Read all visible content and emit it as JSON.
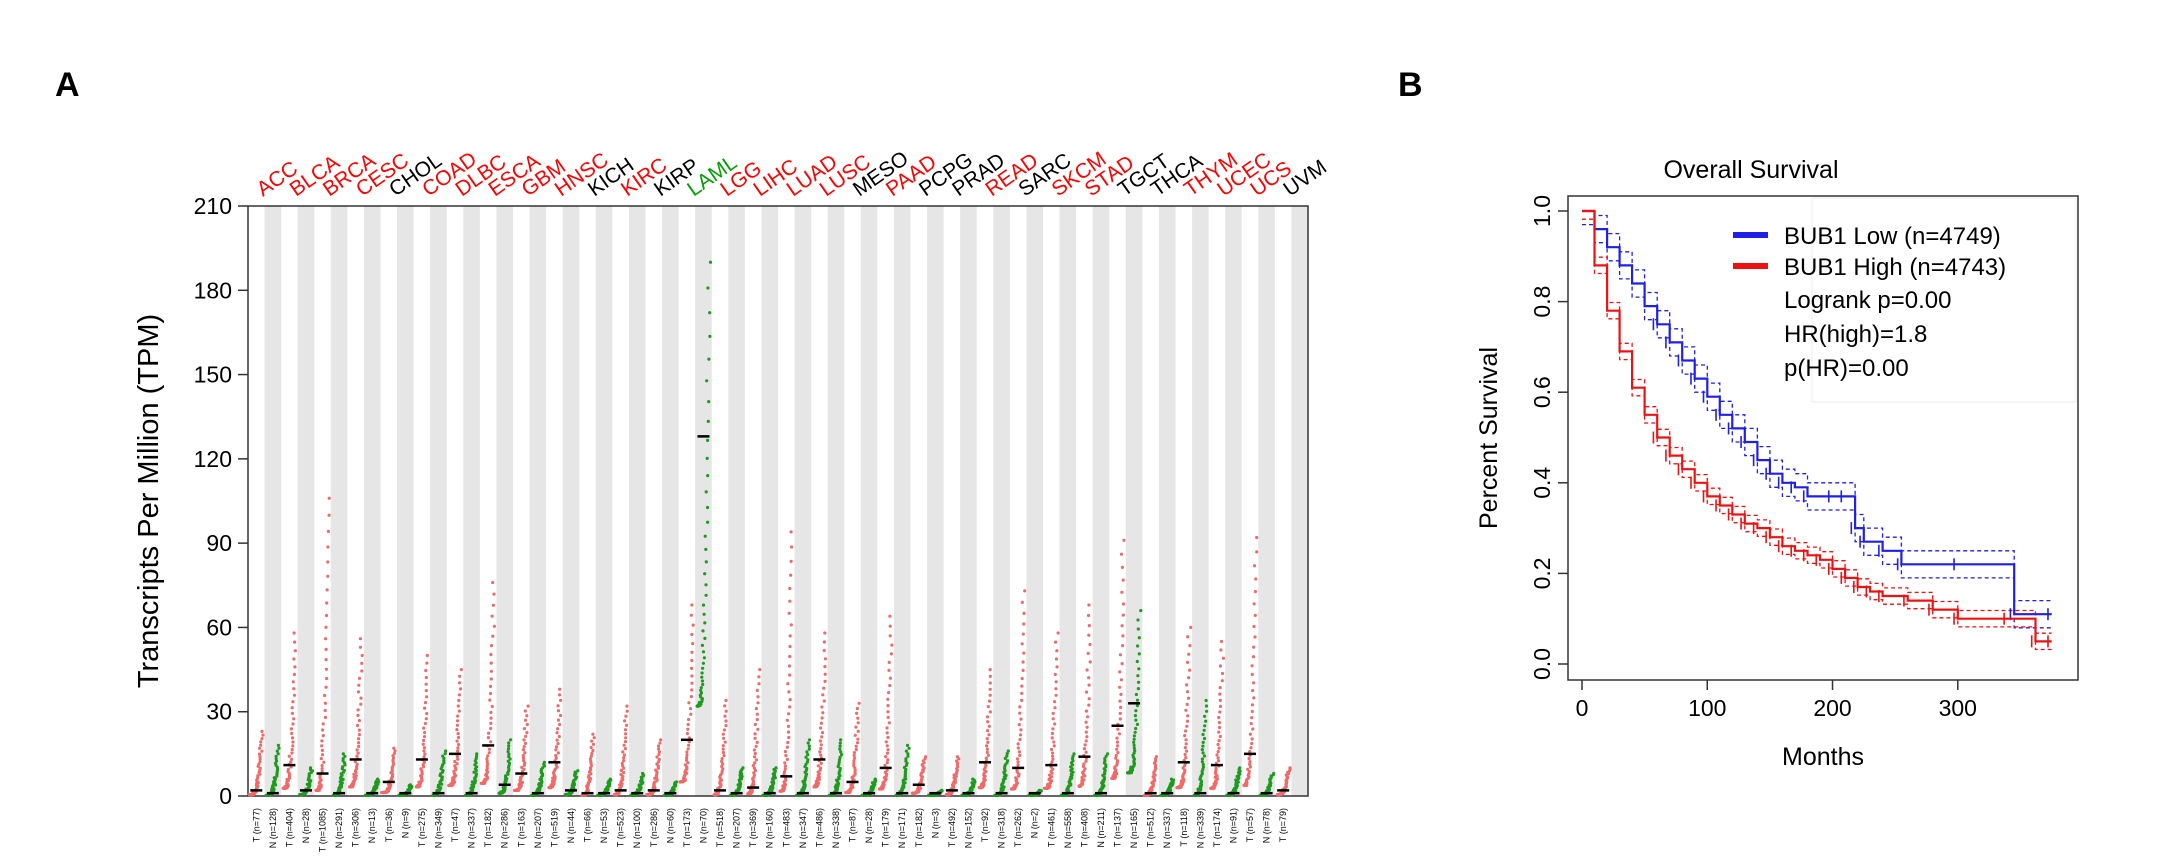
{
  "panels": {
    "a": "A",
    "b": "B"
  },
  "colors": {
    "tumor": "#f06a6a",
    "normal": "#1f9a1f",
    "up": "#ff0000",
    "down": "#00a000",
    "neutral": "#000000",
    "low": "#1f1fe8",
    "high": "#ee1111",
    "band": "#e6e6e6"
  },
  "chart_data": [
    {
      "type": "scatter",
      "subtype": "dot-plot",
      "title": "",
      "ylabel": "Transcripts Per Million (TPM)",
      "ylim": [
        0,
        210
      ],
      "yticks": [
        0,
        30,
        60,
        90,
        120,
        150,
        180,
        210
      ],
      "cancers": [
        {
          "name": "ACC",
          "status": "up",
          "tumor": {
            "label": "T (n=77)",
            "median": 2,
            "max": 23
          },
          "normal": {
            "label": "N (n=128)",
            "median": 1,
            "max": 18
          }
        },
        {
          "name": "BLCA",
          "status": "up",
          "tumor": {
            "label": "T (n=404)",
            "median": 11,
            "max": 58
          },
          "normal": {
            "label": "N (n=28)",
            "median": 2,
            "max": 10
          }
        },
        {
          "name": "BRCA",
          "status": "up",
          "tumor": {
            "label": "T (n=1085)",
            "median": 8,
            "max": 106
          },
          "normal": {
            "label": "N (n=291)",
            "median": 1,
            "max": 15
          }
        },
        {
          "name": "CESC",
          "status": "up",
          "tumor": {
            "label": "T (n=306)",
            "median": 13,
            "max": 56
          },
          "normal": {
            "label": "N (n=13)",
            "median": 1,
            "max": 6
          }
        },
        {
          "name": "CHOL",
          "status": "neutral",
          "tumor": {
            "label": "T (n=36)",
            "median": 5,
            "max": 17
          },
          "normal": {
            "label": "N (n=9)",
            "median": 1,
            "max": 4
          }
        },
        {
          "name": "COAD",
          "status": "up",
          "tumor": {
            "label": "T (n=275)",
            "median": 13,
            "max": 50
          },
          "normal": {
            "label": "N (n=349)",
            "median": 1,
            "max": 16
          }
        },
        {
          "name": "DLBC",
          "status": "up",
          "tumor": {
            "label": "T (n=47)",
            "median": 15,
            "max": 45
          },
          "normal": {
            "label": "N (n=337)",
            "median": 1,
            "max": 15
          }
        },
        {
          "name": "ESCA",
          "status": "up",
          "tumor": {
            "label": "T (n=182)",
            "median": 18,
            "max": 76
          },
          "normal": {
            "label": "N (n=286)",
            "median": 4,
            "max": 20
          }
        },
        {
          "name": "GBM",
          "status": "up",
          "tumor": {
            "label": "T (n=163)",
            "median": 8,
            "max": 32
          },
          "normal": {
            "label": "N (n=207)",
            "median": 1,
            "max": 12
          }
        },
        {
          "name": "HNSC",
          "status": "up",
          "tumor": {
            "label": "T (n=519)",
            "median": 12,
            "max": 38
          },
          "normal": {
            "label": "N (n=44)",
            "median": 2,
            "max": 9
          }
        },
        {
          "name": "KICH",
          "status": "neutral",
          "tumor": {
            "label": "T (n=66)",
            "median": 1,
            "max": 22
          },
          "normal": {
            "label": "N (n=53)",
            "median": 1,
            "max": 6
          }
        },
        {
          "name": "KIRC",
          "status": "up",
          "tumor": {
            "label": "T (n=523)",
            "median": 2,
            "max": 32
          },
          "normal": {
            "label": "N (n=100)",
            "median": 1,
            "max": 8
          }
        },
        {
          "name": "KIRP",
          "status": "neutral",
          "tumor": {
            "label": "T (n=286)",
            "median": 2,
            "max": 20
          },
          "normal": {
            "label": "N (n=60)",
            "median": 1,
            "max": 5
          }
        },
        {
          "name": "LAML",
          "status": "down",
          "tumor": {
            "label": "T (n=173)",
            "median": 20,
            "max": 68
          },
          "normal": {
            "label": "N (n=70)",
            "median": 128,
            "max": 190
          }
        },
        {
          "name": "LGG",
          "status": "up",
          "tumor": {
            "label": "T (n=518)",
            "median": 2,
            "max": 34
          },
          "normal": {
            "label": "N (n=207)",
            "median": 1,
            "max": 10
          }
        },
        {
          "name": "LIHC",
          "status": "up",
          "tumor": {
            "label": "T (n=369)",
            "median": 3,
            "max": 45
          },
          "normal": {
            "label": "N (n=160)",
            "median": 1,
            "max": 10
          }
        },
        {
          "name": "LUAD",
          "status": "up",
          "tumor": {
            "label": "T (n=483)",
            "median": 7,
            "max": 94
          },
          "normal": {
            "label": "N (n=347)",
            "median": 1,
            "max": 20
          }
        },
        {
          "name": "LUSC",
          "status": "up",
          "tumor": {
            "label": "T (n=486)",
            "median": 13,
            "max": 58
          },
          "normal": {
            "label": "N (n=338)",
            "median": 1,
            "max": 20
          }
        },
        {
          "name": "MESO",
          "status": "neutral",
          "tumor": {
            "label": "T (n=87)",
            "median": 5,
            "max": 33
          },
          "normal": {
            "label": "N (n=28)",
            "median": 1,
            "max": 6
          }
        },
        {
          "name": "PAAD",
          "status": "up",
          "tumor": {
            "label": "T (n=179)",
            "median": 10,
            "max": 64
          },
          "normal": {
            "label": "N (n=171)",
            "median": 1,
            "max": 18
          }
        },
        {
          "name": "PCPG",
          "status": "neutral",
          "tumor": {
            "label": "T (n=182)",
            "median": 4,
            "max": 14
          },
          "normal": {
            "label": "N (n=3)",
            "median": 1,
            "max": 2
          }
        },
        {
          "name": "PRAD",
          "status": "neutral",
          "tumor": {
            "label": "T (n=492)",
            "median": 2,
            "max": 14
          },
          "normal": {
            "label": "N (n=152)",
            "median": 1,
            "max": 6
          }
        },
        {
          "name": "READ",
          "status": "up",
          "tumor": {
            "label": "T (n=92)",
            "median": 12,
            "max": 45
          },
          "normal": {
            "label": "N (n=318)",
            "median": 1,
            "max": 16
          }
        },
        {
          "name": "SARC",
          "status": "neutral",
          "tumor": {
            "label": "T (n=262)",
            "median": 10,
            "max": 73
          },
          "normal": {
            "label": "N (n=2)",
            "median": 1,
            "max": 2
          }
        },
        {
          "name": "SKCM",
          "status": "up",
          "tumor": {
            "label": "T (n=461)",
            "median": 11,
            "max": 58
          },
          "normal": {
            "label": "N (n=558)",
            "median": 1,
            "max": 15
          }
        },
        {
          "name": "STAD",
          "status": "up",
          "tumor": {
            "label": "T (n=408)",
            "median": 14,
            "max": 68
          },
          "normal": {
            "label": "N (n=211)",
            "median": 1,
            "max": 15
          }
        },
        {
          "name": "TGCT",
          "status": "neutral",
          "tumor": {
            "label": "T (n=137)",
            "median": 25,
            "max": 91
          },
          "normal": {
            "label": "N (n=165)",
            "median": 33,
            "max": 66
          }
        },
        {
          "name": "THCA",
          "status": "neutral",
          "tumor": {
            "label": "T (n=512)",
            "median": 1,
            "max": 14
          },
          "normal": {
            "label": "N (n=337)",
            "median": 1,
            "max": 6
          }
        },
        {
          "name": "THYM",
          "status": "up",
          "tumor": {
            "label": "T (n=118)",
            "median": 12,
            "max": 60
          },
          "normal": {
            "label": "N (n=339)",
            "median": 1,
            "max": 34
          }
        },
        {
          "name": "UCEC",
          "status": "up",
          "tumor": {
            "label": "T (n=174)",
            "median": 11,
            "max": 55
          },
          "normal": {
            "label": "N (n=91)",
            "median": 1,
            "max": 10
          }
        },
        {
          "name": "UCS",
          "status": "up",
          "tumor": {
            "label": "T (n=57)",
            "median": 15,
            "max": 92
          },
          "normal": {
            "label": "N (n=78)",
            "median": 1,
            "max": 8
          }
        },
        {
          "name": "UVM",
          "status": "neutral",
          "tumor": {
            "label": "T (n=79)",
            "median": 2,
            "max": 10
          },
          "normal": {
            "label": "",
            "median": null,
            "max": null
          }
        }
      ]
    },
    {
      "type": "line",
      "subtype": "kaplan-meier",
      "title": "Overall Survival",
      "xlabel": "Months",
      "ylabel": "Percent Survival",
      "xlim": [
        0,
        380
      ],
      "ylim": [
        0,
        1.0
      ],
      "xticks": [
        0,
        100,
        200,
        300
      ],
      "yticks": [
        0.0,
        0.2,
        0.4,
        0.6,
        0.8,
        1.0
      ],
      "legend": {
        "position": "top-right",
        "entries": [
          "BUB1 Low (n=4749)",
          "BUB1 High (n=4743)"
        ],
        "stats": [
          "Logrank p=0.00",
          "HR(high)=1.8",
          "p(HR)=0.00"
        ]
      },
      "series": [
        {
          "name": "BUB1 Low (n=4749)",
          "color": "low",
          "x": [
            0,
            10,
            20,
            30,
            40,
            50,
            60,
            70,
            80,
            90,
            100,
            110,
            120,
            130,
            140,
            150,
            160,
            170,
            180,
            200,
            210,
            218,
            225,
            240,
            255,
            300,
            345,
            375
          ],
          "y": [
            1.0,
            0.96,
            0.92,
            0.88,
            0.84,
            0.79,
            0.75,
            0.71,
            0.67,
            0.63,
            0.59,
            0.55,
            0.52,
            0.49,
            0.45,
            0.42,
            0.4,
            0.39,
            0.37,
            0.37,
            0.37,
            0.3,
            0.27,
            0.25,
            0.22,
            0.22,
            0.11,
            0.11
          ]
        },
        {
          "name": "BUB1 High (n=4743)",
          "color": "high",
          "x": [
            0,
            10,
            20,
            30,
            40,
            50,
            60,
            70,
            80,
            90,
            100,
            110,
            120,
            130,
            140,
            150,
            160,
            170,
            180,
            190,
            200,
            210,
            220,
            230,
            240,
            260,
            280,
            300,
            340,
            362,
            375
          ],
          "y": [
            1.0,
            0.88,
            0.78,
            0.69,
            0.61,
            0.55,
            0.5,
            0.46,
            0.43,
            0.4,
            0.37,
            0.35,
            0.33,
            0.31,
            0.3,
            0.28,
            0.26,
            0.25,
            0.24,
            0.23,
            0.21,
            0.19,
            0.17,
            0.16,
            0.15,
            0.14,
            0.12,
            0.1,
            0.1,
            0.05,
            0.05
          ]
        }
      ]
    }
  ]
}
